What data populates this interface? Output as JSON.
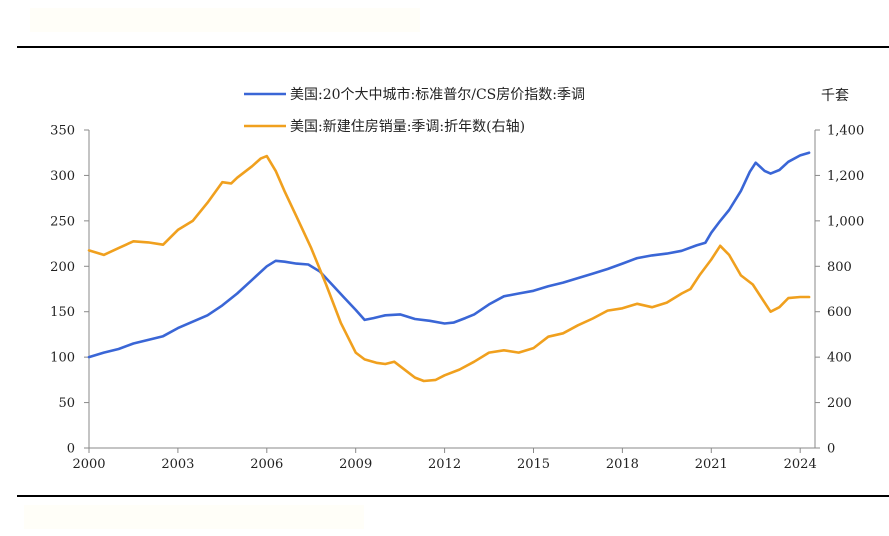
{
  "chart_data": {
    "type": "line",
    "right_axis_unit": "千套",
    "series": [
      {
        "name": "美国:20个大中城市:标准普尔/CS房价指数:季调",
        "axis": "left",
        "color": "#3a66d6",
        "points": [
          [
            2000.0,
            100
          ],
          [
            2000.5,
            105
          ],
          [
            2001.0,
            109
          ],
          [
            2001.5,
            115
          ],
          [
            2002.0,
            119
          ],
          [
            2002.5,
            123
          ],
          [
            2003.0,
            132
          ],
          [
            2003.5,
            139
          ],
          [
            2004.0,
            146
          ],
          [
            2004.5,
            157
          ],
          [
            2005.0,
            170
          ],
          [
            2005.5,
            185
          ],
          [
            2006.0,
            200
          ],
          [
            2006.3,
            206
          ],
          [
            2006.6,
            205
          ],
          [
            2007.0,
            203
          ],
          [
            2007.4,
            202
          ],
          [
            2007.8,
            194
          ],
          [
            2008.2,
            180
          ],
          [
            2008.6,
            166
          ],
          [
            2009.0,
            152
          ],
          [
            2009.3,
            141
          ],
          [
            2009.6,
            143
          ],
          [
            2010.0,
            146
          ],
          [
            2010.5,
            147
          ],
          [
            2011.0,
            142
          ],
          [
            2011.5,
            140
          ],
          [
            2012.0,
            137
          ],
          [
            2012.3,
            138
          ],
          [
            2012.7,
            143
          ],
          [
            2013.0,
            147
          ],
          [
            2013.5,
            158
          ],
          [
            2014.0,
            167
          ],
          [
            2014.5,
            170
          ],
          [
            2015.0,
            173
          ],
          [
            2015.5,
            178
          ],
          [
            2016.0,
            182
          ],
          [
            2016.5,
            187
          ],
          [
            2017.0,
            192
          ],
          [
            2017.5,
            197
          ],
          [
            2018.0,
            203
          ],
          [
            2018.5,
            209
          ],
          [
            2019.0,
            212
          ],
          [
            2019.5,
            214
          ],
          [
            2020.0,
            217
          ],
          [
            2020.5,
            223
          ],
          [
            2020.8,
            226
          ],
          [
            2021.0,
            237
          ],
          [
            2021.3,
            250
          ],
          [
            2021.6,
            262
          ],
          [
            2022.0,
            283
          ],
          [
            2022.3,
            304
          ],
          [
            2022.5,
            314
          ],
          [
            2022.8,
            305
          ],
          [
            2023.0,
            302
          ],
          [
            2023.3,
            306
          ],
          [
            2023.6,
            315
          ],
          [
            2024.0,
            322
          ],
          [
            2024.3,
            325
          ]
        ]
      },
      {
        "name": "美国:新建住房销量:季调:折年数(右轴)",
        "axis": "right",
        "color": "#f0a01e",
        "points": [
          [
            2000.0,
            870
          ],
          [
            2000.5,
            850
          ],
          [
            2001.0,
            880
          ],
          [
            2001.5,
            910
          ],
          [
            2002.0,
            905
          ],
          [
            2002.5,
            895
          ],
          [
            2003.0,
            960
          ],
          [
            2003.5,
            1000
          ],
          [
            2004.0,
            1080
          ],
          [
            2004.5,
            1170
          ],
          [
            2004.8,
            1165
          ],
          [
            2005.0,
            1190
          ],
          [
            2005.5,
            1240
          ],
          [
            2005.8,
            1275
          ],
          [
            2006.0,
            1285
          ],
          [
            2006.3,
            1220
          ],
          [
            2006.6,
            1130
          ],
          [
            2007.0,
            1020
          ],
          [
            2007.5,
            880
          ],
          [
            2008.0,
            720
          ],
          [
            2008.5,
            550
          ],
          [
            2009.0,
            420
          ],
          [
            2009.3,
            390
          ],
          [
            2009.7,
            375
          ],
          [
            2010.0,
            370
          ],
          [
            2010.3,
            380
          ],
          [
            2010.7,
            340
          ],
          [
            2011.0,
            310
          ],
          [
            2011.3,
            295
          ],
          [
            2011.7,
            300
          ],
          [
            2012.0,
            320
          ],
          [
            2012.5,
            345
          ],
          [
            2013.0,
            380
          ],
          [
            2013.5,
            420
          ],
          [
            2014.0,
            430
          ],
          [
            2014.5,
            420
          ],
          [
            2015.0,
            440
          ],
          [
            2015.5,
            490
          ],
          [
            2016.0,
            505
          ],
          [
            2016.5,
            540
          ],
          [
            2017.0,
            570
          ],
          [
            2017.5,
            605
          ],
          [
            2018.0,
            615
          ],
          [
            2018.5,
            635
          ],
          [
            2019.0,
            620
          ],
          [
            2019.5,
            640
          ],
          [
            2020.0,
            680
          ],
          [
            2020.3,
            700
          ],
          [
            2020.6,
            760
          ],
          [
            2021.0,
            830
          ],
          [
            2021.3,
            890
          ],
          [
            2021.6,
            850
          ],
          [
            2022.0,
            760
          ],
          [
            2022.4,
            720
          ],
          [
            2022.8,
            640
          ],
          [
            2023.0,
            600
          ],
          [
            2023.3,
            620
          ],
          [
            2023.6,
            660
          ],
          [
            2024.0,
            665
          ],
          [
            2024.3,
            665
          ]
        ]
      }
    ],
    "x_ticks": [
      "2000",
      "2003",
      "2006",
      "2009",
      "2012",
      "2015",
      "2018",
      "2021",
      "2024"
    ],
    "x_range": [
      2000,
      2024.5
    ],
    "left_ticks": [
      "0",
      "50",
      "100",
      "150",
      "200",
      "250",
      "300",
      "350"
    ],
    "left_range": [
      0,
      350
    ],
    "right_ticks": [
      "0",
      "200",
      "400",
      "600",
      "800",
      "1,000",
      "1,200",
      "1,400"
    ],
    "right_range": [
      0,
      1400
    ],
    "grid": false,
    "legend_placement": "top-center"
  }
}
